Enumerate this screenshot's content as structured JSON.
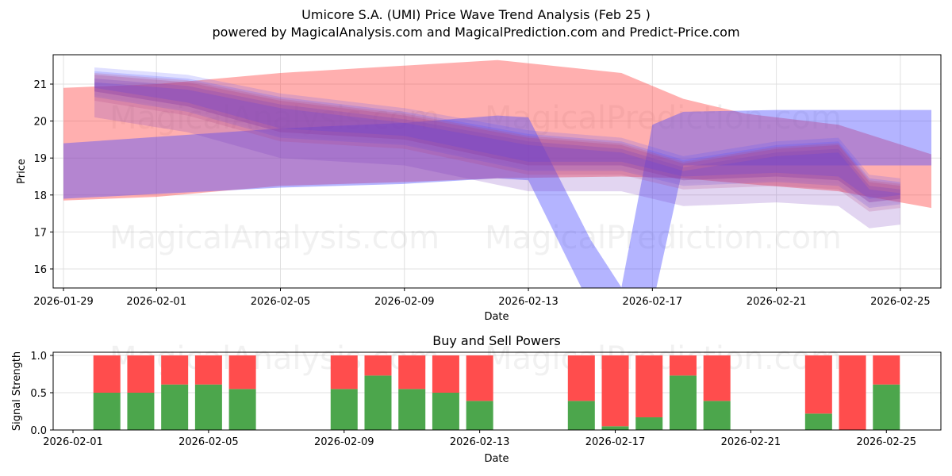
{
  "header": {
    "title": "Umicore S.A. (UMI) Price Wave Trend Analysis (Feb 25 )",
    "subtitle": "powered by MagicalAnalysis.com and MagicalPrediction.com and Predict-Price.com"
  },
  "watermarks": [
    "MagicalAnalysis.com",
    "MagicalPrediction.com"
  ],
  "colors": {
    "red_band": "#ff4d4d",
    "blue_band": "#4d4dff",
    "buy_green": "#4ca64c",
    "sell_red": "#ff4d4d",
    "grid": "#e0e0e0"
  },
  "chart_data": [
    {
      "type": "area",
      "title": "",
      "xlabel": "Date",
      "ylabel": "Price",
      "ylim": [
        15.5,
        21.8
      ],
      "yticks": [
        16,
        17,
        18,
        19,
        20,
        21
      ],
      "xticks": [
        "2026-01-29",
        "2026-02-01",
        "2026-02-05",
        "2026-02-09",
        "2026-02-13",
        "2026-02-17",
        "2026-02-21",
        "2026-02-25"
      ],
      "grid": true,
      "series": [
        {
          "name": "red wave band (wide)",
          "color": "red",
          "x": [
            "2026-01-29",
            "2026-02-01",
            "2026-02-05",
            "2026-02-09",
            "2026-02-12",
            "2026-02-16",
            "2026-02-18",
            "2026-02-20",
            "2026-02-23",
            "2026-02-26"
          ],
          "upper": [
            20.9,
            21.0,
            21.3,
            21.5,
            21.65,
            21.3,
            20.6,
            20.2,
            19.9,
            19.1
          ],
          "lower": [
            17.85,
            17.95,
            18.25,
            18.35,
            18.45,
            18.5,
            18.45,
            18.3,
            18.1,
            17.65
          ]
        },
        {
          "name": "blue wave band (V dip)",
          "color": "blue",
          "x": [
            "2026-01-29",
            "2026-02-05",
            "2026-02-09",
            "2026-02-12",
            "2026-02-13",
            "2026-02-15",
            "2026-02-16",
            "2026-02-17",
            "2026-02-18",
            "2026-02-21",
            "2026-02-24",
            "2026-02-26"
          ],
          "upper": [
            19.4,
            19.8,
            19.95,
            20.15,
            20.1,
            16.8,
            15.5,
            19.9,
            20.25,
            20.3,
            20.3,
            20.3
          ],
          "lower": [
            17.9,
            18.2,
            18.3,
            18.45,
            18.4,
            15.0,
            15.0,
            15.0,
            18.8,
            18.8,
            18.8,
            18.8
          ]
        },
        {
          "name": "purple short-term waves",
          "color": "purple",
          "x": [
            "2026-01-30",
            "2026-02-02",
            "2026-02-05",
            "2026-02-09",
            "2026-02-13",
            "2026-02-16",
            "2026-02-18",
            "2026-02-21",
            "2026-02-23",
            "2026-02-24",
            "2026-02-25"
          ],
          "upper": [
            21.3,
            21.1,
            20.6,
            20.2,
            19.6,
            19.4,
            18.9,
            19.3,
            19.4,
            18.4,
            18.3
          ],
          "lower": [
            20.7,
            20.3,
            19.6,
            19.4,
            18.7,
            18.7,
            18.3,
            18.4,
            18.3,
            17.7,
            17.8
          ]
        }
      ]
    },
    {
      "type": "bar",
      "title": "Buy and Sell Powers",
      "xlabel": "Date",
      "ylabel": "Signal Strength",
      "ylim": [
        0,
        1.05
      ],
      "yticks": [
        "0.0",
        "0.5",
        "1.0"
      ],
      "xticks": [
        "2026-02-01",
        "2026-02-05",
        "2026-02-09",
        "2026-02-13",
        "2026-02-17",
        "2026-02-21",
        "2026-02-25"
      ],
      "categories": [
        "2026-02-02",
        "2026-02-03",
        "2026-02-04",
        "2026-02-05",
        "2026-02-06",
        "2026-02-09",
        "2026-02-10",
        "2026-02-11",
        "2026-02-12",
        "2026-02-13",
        "2026-02-16",
        "2026-02-17",
        "2026-02-18",
        "2026-02-19",
        "2026-02-20",
        "2026-02-23",
        "2026-02-24",
        "2026-02-25"
      ],
      "series": [
        {
          "name": "Buy",
          "color": "green",
          "values": [
            0.5,
            0.5,
            0.61,
            0.61,
            0.55,
            0.55,
            0.73,
            0.55,
            0.5,
            0.39,
            0.39,
            0.05,
            0.17,
            0.73,
            0.39,
            0.22,
            0.0,
            0.61
          ]
        },
        {
          "name": "Sell",
          "color": "red",
          "values": [
            0.5,
            0.5,
            0.39,
            0.39,
            0.45,
            0.45,
            0.27,
            0.45,
            0.5,
            0.61,
            0.61,
            0.95,
            0.83,
            0.27,
            0.61,
            0.78,
            1.0,
            0.39
          ]
        }
      ]
    }
  ]
}
